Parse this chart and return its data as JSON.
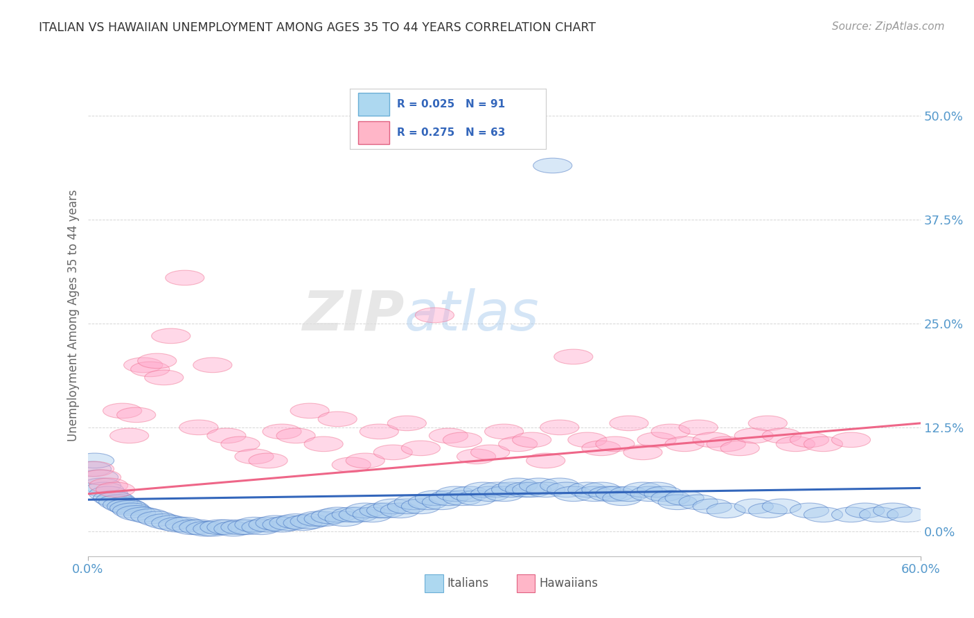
{
  "title": "ITALIAN VS HAWAIIAN UNEMPLOYMENT AMONG AGES 35 TO 44 YEARS CORRELATION CHART",
  "source": "Source: ZipAtlas.com",
  "ylabel": "Unemployment Among Ages 35 to 44 years",
  "ytick_labels": [
    "0.0%",
    "12.5%",
    "25.0%",
    "37.5%",
    "50.0%"
  ],
  "ytick_values": [
    0.0,
    12.5,
    25.0,
    37.5,
    50.0
  ],
  "xlim": [
    0.0,
    60.0
  ],
  "ylim": [
    -3.0,
    55.0
  ],
  "legend": {
    "italian": {
      "R": 0.025,
      "N": 91,
      "color": "#ADD8F0",
      "edge": "#6AAED6"
    },
    "hawaiian": {
      "R": 0.275,
      "N": 63,
      "color": "#FFB6C8",
      "edge": "#E06080"
    }
  },
  "background_color": "#FFFFFF",
  "grid_color": "#CCCCCC",
  "title_color": "#333333",
  "axis_label_color": "#666666",
  "italian_color": "#AACCEE",
  "hawaiian_color": "#FFAACC",
  "italian_line_color": "#3366BB",
  "hawaiian_line_color": "#EE6688",
  "tick_color": "#5599CC",
  "italian_points": [
    [
      0.3,
      7.5
    ],
    [
      0.5,
      8.5
    ],
    [
      0.8,
      6.5
    ],
    [
      1.0,
      5.5
    ],
    [
      1.2,
      5.0
    ],
    [
      1.5,
      4.5
    ],
    [
      1.8,
      4.0
    ],
    [
      2.0,
      3.8
    ],
    [
      2.2,
      3.5
    ],
    [
      2.5,
      3.2
    ],
    [
      2.8,
      3.0
    ],
    [
      3.0,
      2.8
    ],
    [
      3.2,
      2.5
    ],
    [
      3.5,
      2.2
    ],
    [
      4.0,
      2.0
    ],
    [
      4.5,
      1.8
    ],
    [
      5.0,
      1.5
    ],
    [
      5.5,
      1.2
    ],
    [
      6.0,
      1.0
    ],
    [
      6.5,
      0.8
    ],
    [
      7.0,
      0.8
    ],
    [
      7.5,
      0.5
    ],
    [
      8.0,
      0.5
    ],
    [
      8.5,
      0.3
    ],
    [
      9.0,
      0.3
    ],
    [
      9.5,
      0.5
    ],
    [
      10.0,
      0.5
    ],
    [
      10.5,
      0.3
    ],
    [
      11.0,
      0.5
    ],
    [
      11.5,
      0.5
    ],
    [
      12.0,
      0.8
    ],
    [
      12.5,
      0.5
    ],
    [
      13.0,
      0.8
    ],
    [
      13.5,
      1.0
    ],
    [
      14.0,
      0.8
    ],
    [
      14.5,
      1.0
    ],
    [
      15.0,
      1.2
    ],
    [
      15.5,
      1.0
    ],
    [
      16.0,
      1.2
    ],
    [
      16.5,
      1.5
    ],
    [
      17.0,
      1.5
    ],
    [
      17.5,
      1.8
    ],
    [
      18.0,
      2.0
    ],
    [
      18.5,
      1.5
    ],
    [
      19.0,
      2.0
    ],
    [
      19.5,
      2.0
    ],
    [
      20.0,
      2.5
    ],
    [
      20.5,
      2.0
    ],
    [
      21.0,
      2.5
    ],
    [
      21.5,
      2.5
    ],
    [
      22.0,
      3.0
    ],
    [
      22.5,
      2.5
    ],
    [
      23.0,
      3.0
    ],
    [
      23.5,
      3.5
    ],
    [
      24.0,
      3.0
    ],
    [
      24.5,
      3.5
    ],
    [
      25.0,
      4.0
    ],
    [
      25.5,
      3.5
    ],
    [
      26.0,
      4.0
    ],
    [
      26.5,
      4.5
    ],
    [
      27.0,
      4.0
    ],
    [
      27.5,
      4.5
    ],
    [
      28.0,
      4.0
    ],
    [
      28.5,
      5.0
    ],
    [
      29.0,
      4.5
    ],
    [
      29.5,
      5.0
    ],
    [
      30.0,
      4.5
    ],
    [
      30.5,
      5.0
    ],
    [
      31.0,
      5.5
    ],
    [
      31.5,
      5.0
    ],
    [
      32.0,
      5.0
    ],
    [
      32.5,
      5.5
    ],
    [
      33.0,
      5.0
    ],
    [
      34.0,
      5.5
    ],
    [
      34.5,
      5.0
    ],
    [
      35.0,
      4.5
    ],
    [
      36.0,
      5.0
    ],
    [
      36.5,
      4.5
    ],
    [
      37.0,
      5.0
    ],
    [
      37.5,
      4.5
    ],
    [
      38.0,
      4.5
    ],
    [
      38.5,
      4.0
    ],
    [
      39.0,
      4.5
    ],
    [
      40.0,
      5.0
    ],
    [
      40.5,
      4.5
    ],
    [
      41.0,
      5.0
    ],
    [
      41.5,
      4.5
    ],
    [
      42.0,
      4.0
    ],
    [
      42.5,
      3.5
    ],
    [
      43.0,
      4.0
    ],
    [
      44.0,
      3.5
    ],
    [
      45.0,
      3.0
    ],
    [
      46.0,
      2.5
    ],
    [
      48.0,
      3.0
    ],
    [
      49.0,
      2.5
    ],
    [
      50.0,
      3.0
    ],
    [
      52.0,
      2.5
    ],
    [
      53.0,
      2.0
    ],
    [
      55.0,
      2.0
    ],
    [
      56.0,
      2.5
    ],
    [
      57.0,
      2.0
    ],
    [
      58.0,
      2.5
    ],
    [
      59.0,
      2.0
    ],
    [
      33.5,
      44.0
    ]
  ],
  "hawaiian_points": [
    [
      0.5,
      7.5
    ],
    [
      1.0,
      6.5
    ],
    [
      1.5,
      5.5
    ],
    [
      2.0,
      5.0
    ],
    [
      2.5,
      14.5
    ],
    [
      3.0,
      11.5
    ],
    [
      3.5,
      14.0
    ],
    [
      4.0,
      20.0
    ],
    [
      4.5,
      19.5
    ],
    [
      5.0,
      20.5
    ],
    [
      5.5,
      18.5
    ],
    [
      6.0,
      23.5
    ],
    [
      7.0,
      30.5
    ],
    [
      8.0,
      12.5
    ],
    [
      9.0,
      20.0
    ],
    [
      10.0,
      11.5
    ],
    [
      11.0,
      10.5
    ],
    [
      12.0,
      9.0
    ],
    [
      13.0,
      8.5
    ],
    [
      14.0,
      12.0
    ],
    [
      15.0,
      11.5
    ],
    [
      16.0,
      14.5
    ],
    [
      17.0,
      10.5
    ],
    [
      18.0,
      13.5
    ],
    [
      19.0,
      8.0
    ],
    [
      20.0,
      8.5
    ],
    [
      21.0,
      12.0
    ],
    [
      22.0,
      9.5
    ],
    [
      23.0,
      13.0
    ],
    [
      24.0,
      10.0
    ],
    [
      25.0,
      26.0
    ],
    [
      26.0,
      11.5
    ],
    [
      27.0,
      11.0
    ],
    [
      28.0,
      9.0
    ],
    [
      29.0,
      9.5
    ],
    [
      30.0,
      12.0
    ],
    [
      31.0,
      10.5
    ],
    [
      32.0,
      11.0
    ],
    [
      33.0,
      8.5
    ],
    [
      34.0,
      12.5
    ],
    [
      35.0,
      21.0
    ],
    [
      36.0,
      11.0
    ],
    [
      37.0,
      10.0
    ],
    [
      38.0,
      10.5
    ],
    [
      39.0,
      13.0
    ],
    [
      40.0,
      9.5
    ],
    [
      41.0,
      11.0
    ],
    [
      42.0,
      12.0
    ],
    [
      43.0,
      10.5
    ],
    [
      44.0,
      12.5
    ],
    [
      45.0,
      11.0
    ],
    [
      46.0,
      10.5
    ],
    [
      47.0,
      10.0
    ],
    [
      48.0,
      11.5
    ],
    [
      49.0,
      13.0
    ],
    [
      50.0,
      11.5
    ],
    [
      51.0,
      10.5
    ],
    [
      52.0,
      11.0
    ],
    [
      53.0,
      10.5
    ],
    [
      55.0,
      11.0
    ]
  ],
  "italian_line": {
    "x0": 0.0,
    "y0": 3.8,
    "x1": 60.0,
    "y1": 5.2
  },
  "hawaiian_line": {
    "x0": 0.0,
    "y0": 4.5,
    "x1": 60.0,
    "y1": 13.0
  },
  "watermark_text": "ZIPatlas",
  "watermark_fontsize": 58,
  "bottom_legend_labels": [
    "Italians",
    "Hawaiians"
  ]
}
